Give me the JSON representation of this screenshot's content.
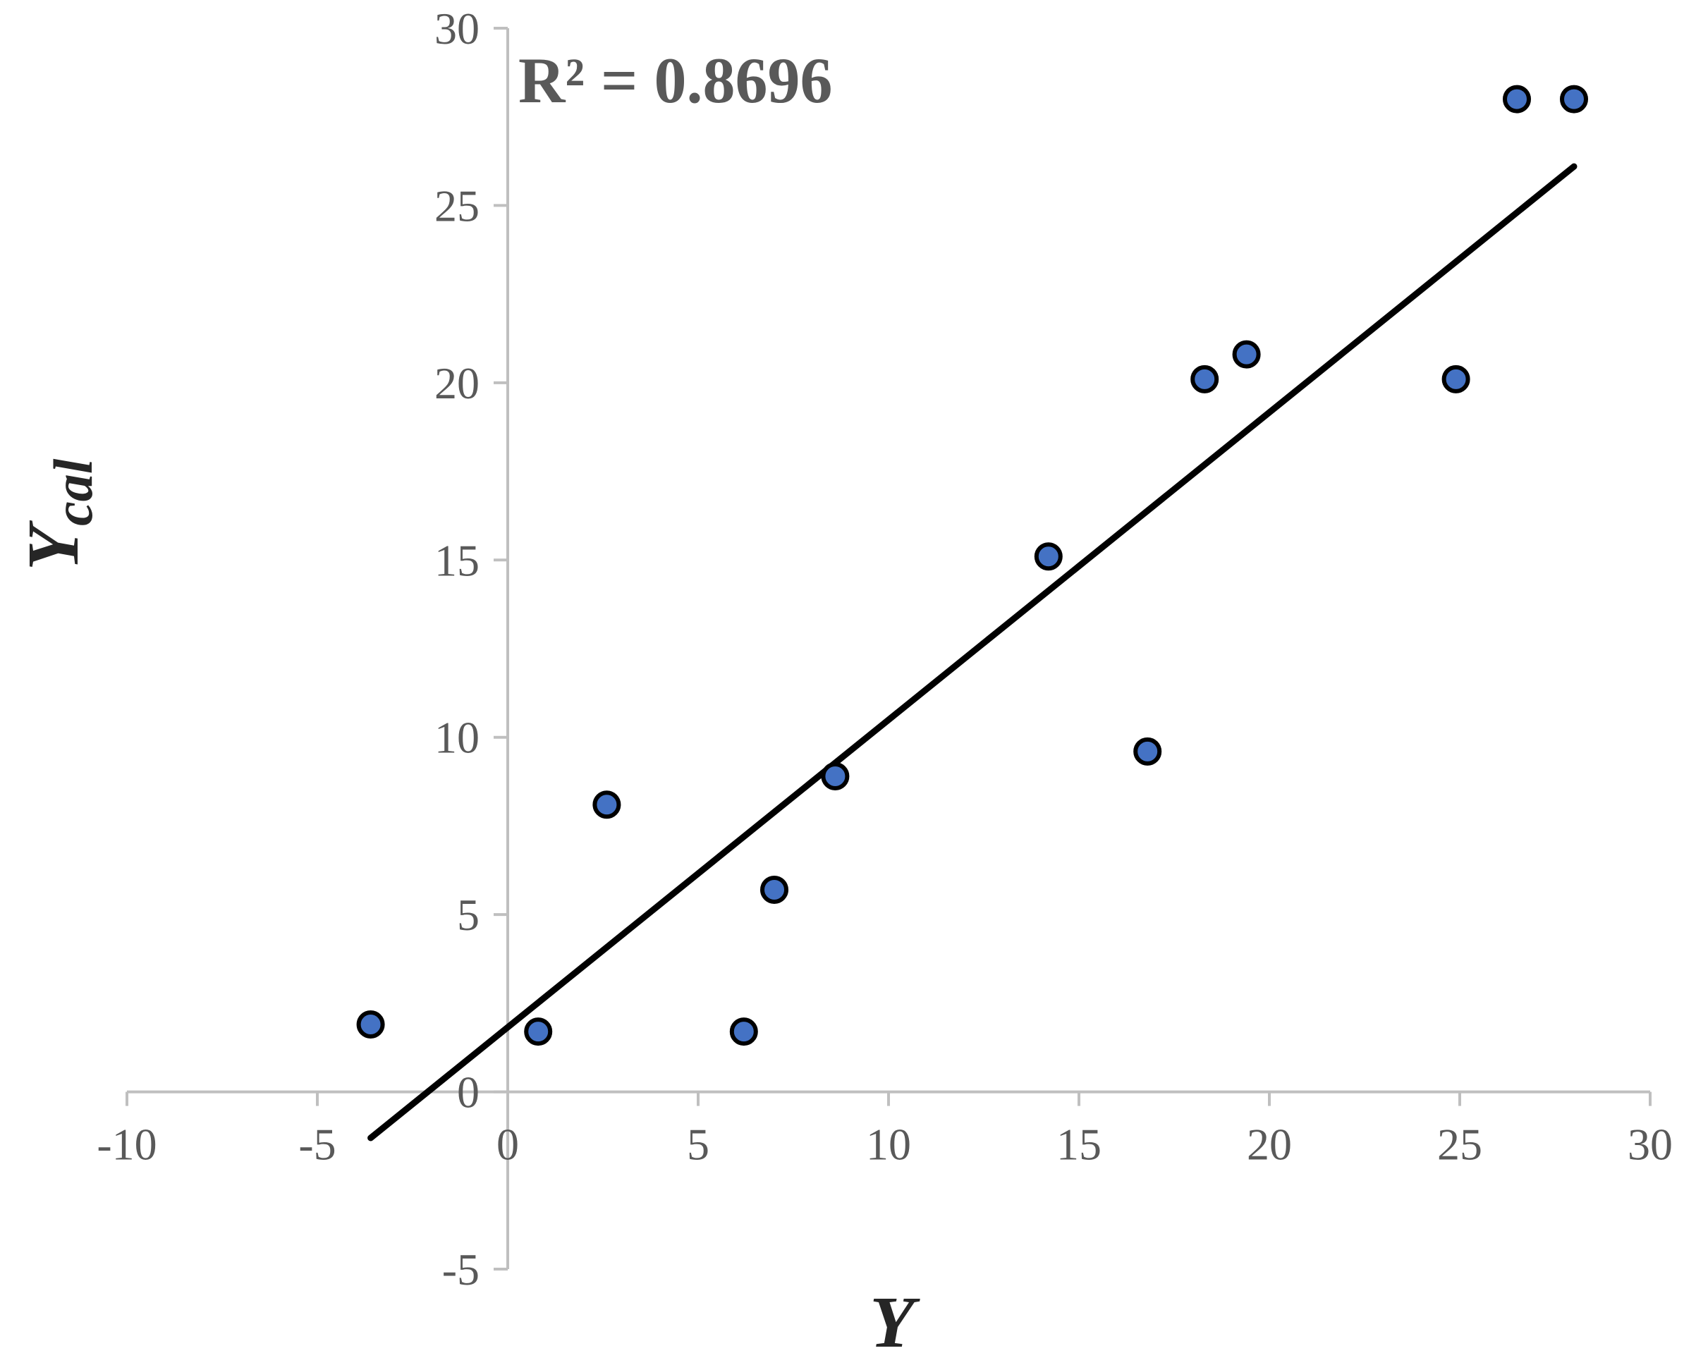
{
  "chart_data": {
    "type": "scatter",
    "title": "",
    "xlabel": "Y",
    "ylabel_main": "Y",
    "ylabel_subscript": "cal",
    "xlim": [
      -10,
      30
    ],
    "ylim": [
      -5,
      30
    ],
    "x_ticks": [
      -10,
      -5,
      0,
      5,
      10,
      15,
      20,
      25,
      30
    ],
    "y_ticks": [
      -5,
      0,
      5,
      10,
      15,
      20,
      25,
      30
    ],
    "x_tick_labels": [
      "-10",
      "-5",
      "0",
      "5",
      "10",
      "15",
      "20",
      "25",
      "30"
    ],
    "y_tick_labels": [
      "-5",
      "0",
      "5",
      "10",
      "15",
      "20",
      "25",
      "30"
    ],
    "grid": false,
    "legend": "none",
    "annotation": "R² = 0.8696",
    "marker_color": "#4472C4",
    "marker_edge_color": "#000000",
    "axis_color": "#BFBFBF",
    "trendline_color": "#000000",
    "points": [
      {
        "x": -3.6,
        "y": 1.9
      },
      {
        "x": 0.8,
        "y": 1.7
      },
      {
        "x": 2.6,
        "y": 8.1
      },
      {
        "x": 6.2,
        "y": 1.7
      },
      {
        "x": 7.0,
        "y": 5.7
      },
      {
        "x": 8.6,
        "y": 8.9
      },
      {
        "x": 14.2,
        "y": 15.1
      },
      {
        "x": 16.8,
        "y": 9.6
      },
      {
        "x": 18.3,
        "y": 20.1
      },
      {
        "x": 19.4,
        "y": 20.8
      },
      {
        "x": 24.9,
        "y": 20.1
      },
      {
        "x": 26.5,
        "y": 28.0
      },
      {
        "x": 28.0,
        "y": 28.0
      }
    ],
    "trendline": {
      "x": [
        -3.6,
        28.0
      ],
      "y": [
        -1.3,
        26.1
      ]
    }
  }
}
